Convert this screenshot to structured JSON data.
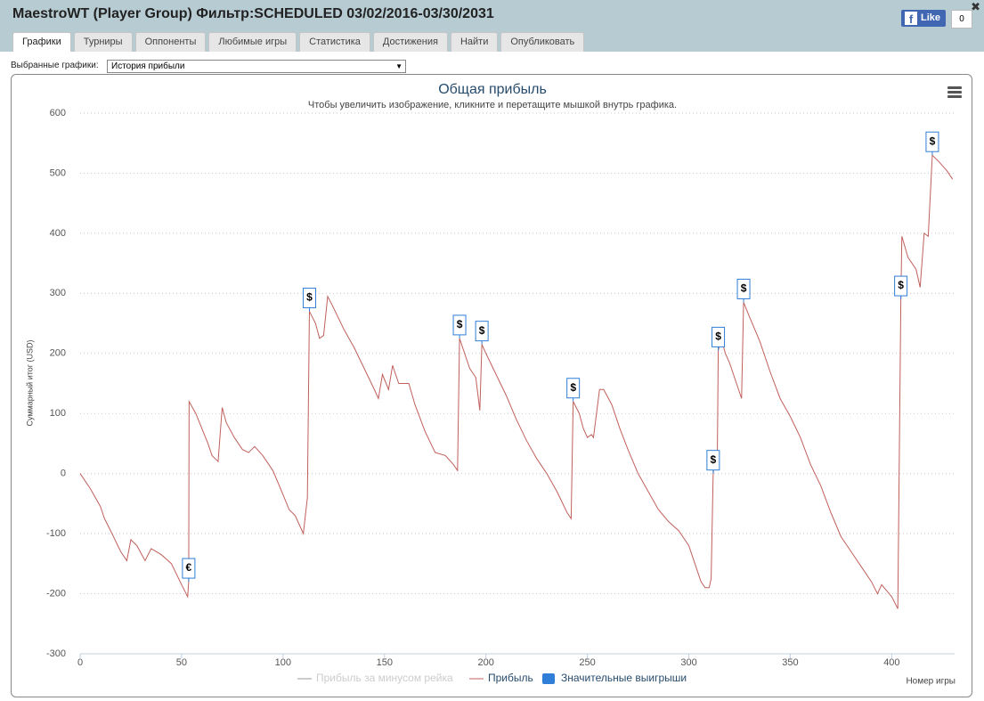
{
  "header": {
    "title": "MaestroWT (Player Group) Фильтр:SCHEDULED 03/02/2016-03/30/2031",
    "like": "Like",
    "like_count": 0
  },
  "tabs": [
    "Графики",
    "Турниры",
    "Оппоненты",
    "Любимые игры",
    "Статистика",
    "Достижения",
    "Найти",
    "Опубликовать"
  ],
  "selector": {
    "label": "Выбранные графики:",
    "value": "История прибыли"
  },
  "chart_data": {
    "type": "line",
    "title": "Общая прибыль",
    "subtitle": "Чтобы увеличить изображение, кликните и перетащите мышкой внутрь графика.",
    "ylabel": "Суммарный итог (USD)",
    "xlabel": "Номер игры",
    "xlim": [
      0,
      431
    ],
    "ylim": [
      -300,
      600
    ],
    "xticks": [
      0,
      50,
      100,
      150,
      200,
      250,
      300,
      350,
      400
    ],
    "yticks": [
      -300,
      -200,
      -100,
      0,
      100,
      200,
      300,
      400,
      500,
      600
    ],
    "grid": true,
    "x": [
      0,
      5,
      10,
      12,
      15,
      20,
      23,
      25,
      28,
      32,
      35,
      40,
      45,
      50,
      53,
      53.5,
      53.7,
      57,
      60,
      63,
      65,
      68,
      70,
      72,
      76,
      80,
      83,
      86,
      90,
      95,
      100,
      103,
      106,
      110,
      112,
      113,
      116,
      118,
      120,
      122,
      125,
      130,
      135,
      140,
      145,
      147,
      149,
      152,
      154,
      157,
      160,
      162,
      165,
      170,
      175,
      180,
      184,
      186,
      187,
      190,
      192,
      195,
      197,
      198,
      200,
      205,
      210,
      215,
      220,
      225,
      230,
      235,
      240,
      242,
      243,
      246,
      248,
      250,
      252,
      253,
      256,
      258,
      262,
      266,
      270,
      275,
      280,
      285,
      290,
      295,
      300,
      303,
      306,
      308,
      310,
      311,
      312,
      313,
      314,
      314.5,
      316,
      318,
      320,
      322,
      325,
      326,
      327,
      330,
      335,
      340,
      345,
      350,
      355,
      360,
      365,
      370,
      375,
      380,
      385,
      390,
      393,
      395,
      400,
      403,
      404.5,
      405,
      408,
      412,
      414,
      416,
      418,
      420,
      423,
      427,
      430
    ],
    "series": [
      {
        "name": "Прибыль",
        "color": "#c0605c",
        "values": [
          0,
          -25,
          -55,
          -75,
          -95,
          -130,
          -145,
          -110,
          -120,
          -145,
          -125,
          -135,
          -150,
          -185,
          -205,
          -180,
          120,
          100,
          75,
          50,
          30,
          20,
          110,
          85,
          60,
          40,
          35,
          45,
          30,
          5,
          -35,
          -60,
          -70,
          -100,
          -40,
          270,
          250,
          225,
          230,
          295,
          275,
          240,
          210,
          175,
          140,
          125,
          165,
          140,
          180,
          150,
          150,
          150,
          115,
          70,
          35,
          30,
          15,
          5,
          225,
          195,
          175,
          160,
          105,
          215,
          200,
          165,
          130,
          90,
          55,
          25,
          0,
          -30,
          -65,
          -75,
          120,
          100,
          75,
          60,
          65,
          60,
          140,
          140,
          115,
          75,
          40,
          0,
          -30,
          -60,
          -80,
          -95,
          -120,
          -150,
          -180,
          -190,
          -190,
          -175,
          0,
          25,
          10,
          205,
          225,
          200,
          185,
          165,
          135,
          125,
          285,
          260,
          220,
          170,
          125,
          95,
          60,
          15,
          -20,
          -65,
          -105,
          -130,
          -155,
          -180,
          -200,
          -185,
          -205,
          -225,
          290,
          395,
          360,
          340,
          310,
          400,
          395,
          530,
          520,
          505,
          490
        ]
      }
    ],
    "hidden_series": [
      {
        "name": "Прибыль за минусом рейка",
        "color": "#cccccc"
      }
    ],
    "flags": {
      "name": "Значительные выигрыши",
      "color": "#2f7ed8",
      "x": [
        53.5,
        113,
        187,
        198,
        243,
        312,
        314.5,
        327,
        404.5,
        420
      ],
      "labels": [
        "€",
        "$",
        "$",
        "$",
        "$",
        "$",
        "$",
        "$",
        "$",
        "$"
      ]
    }
  }
}
